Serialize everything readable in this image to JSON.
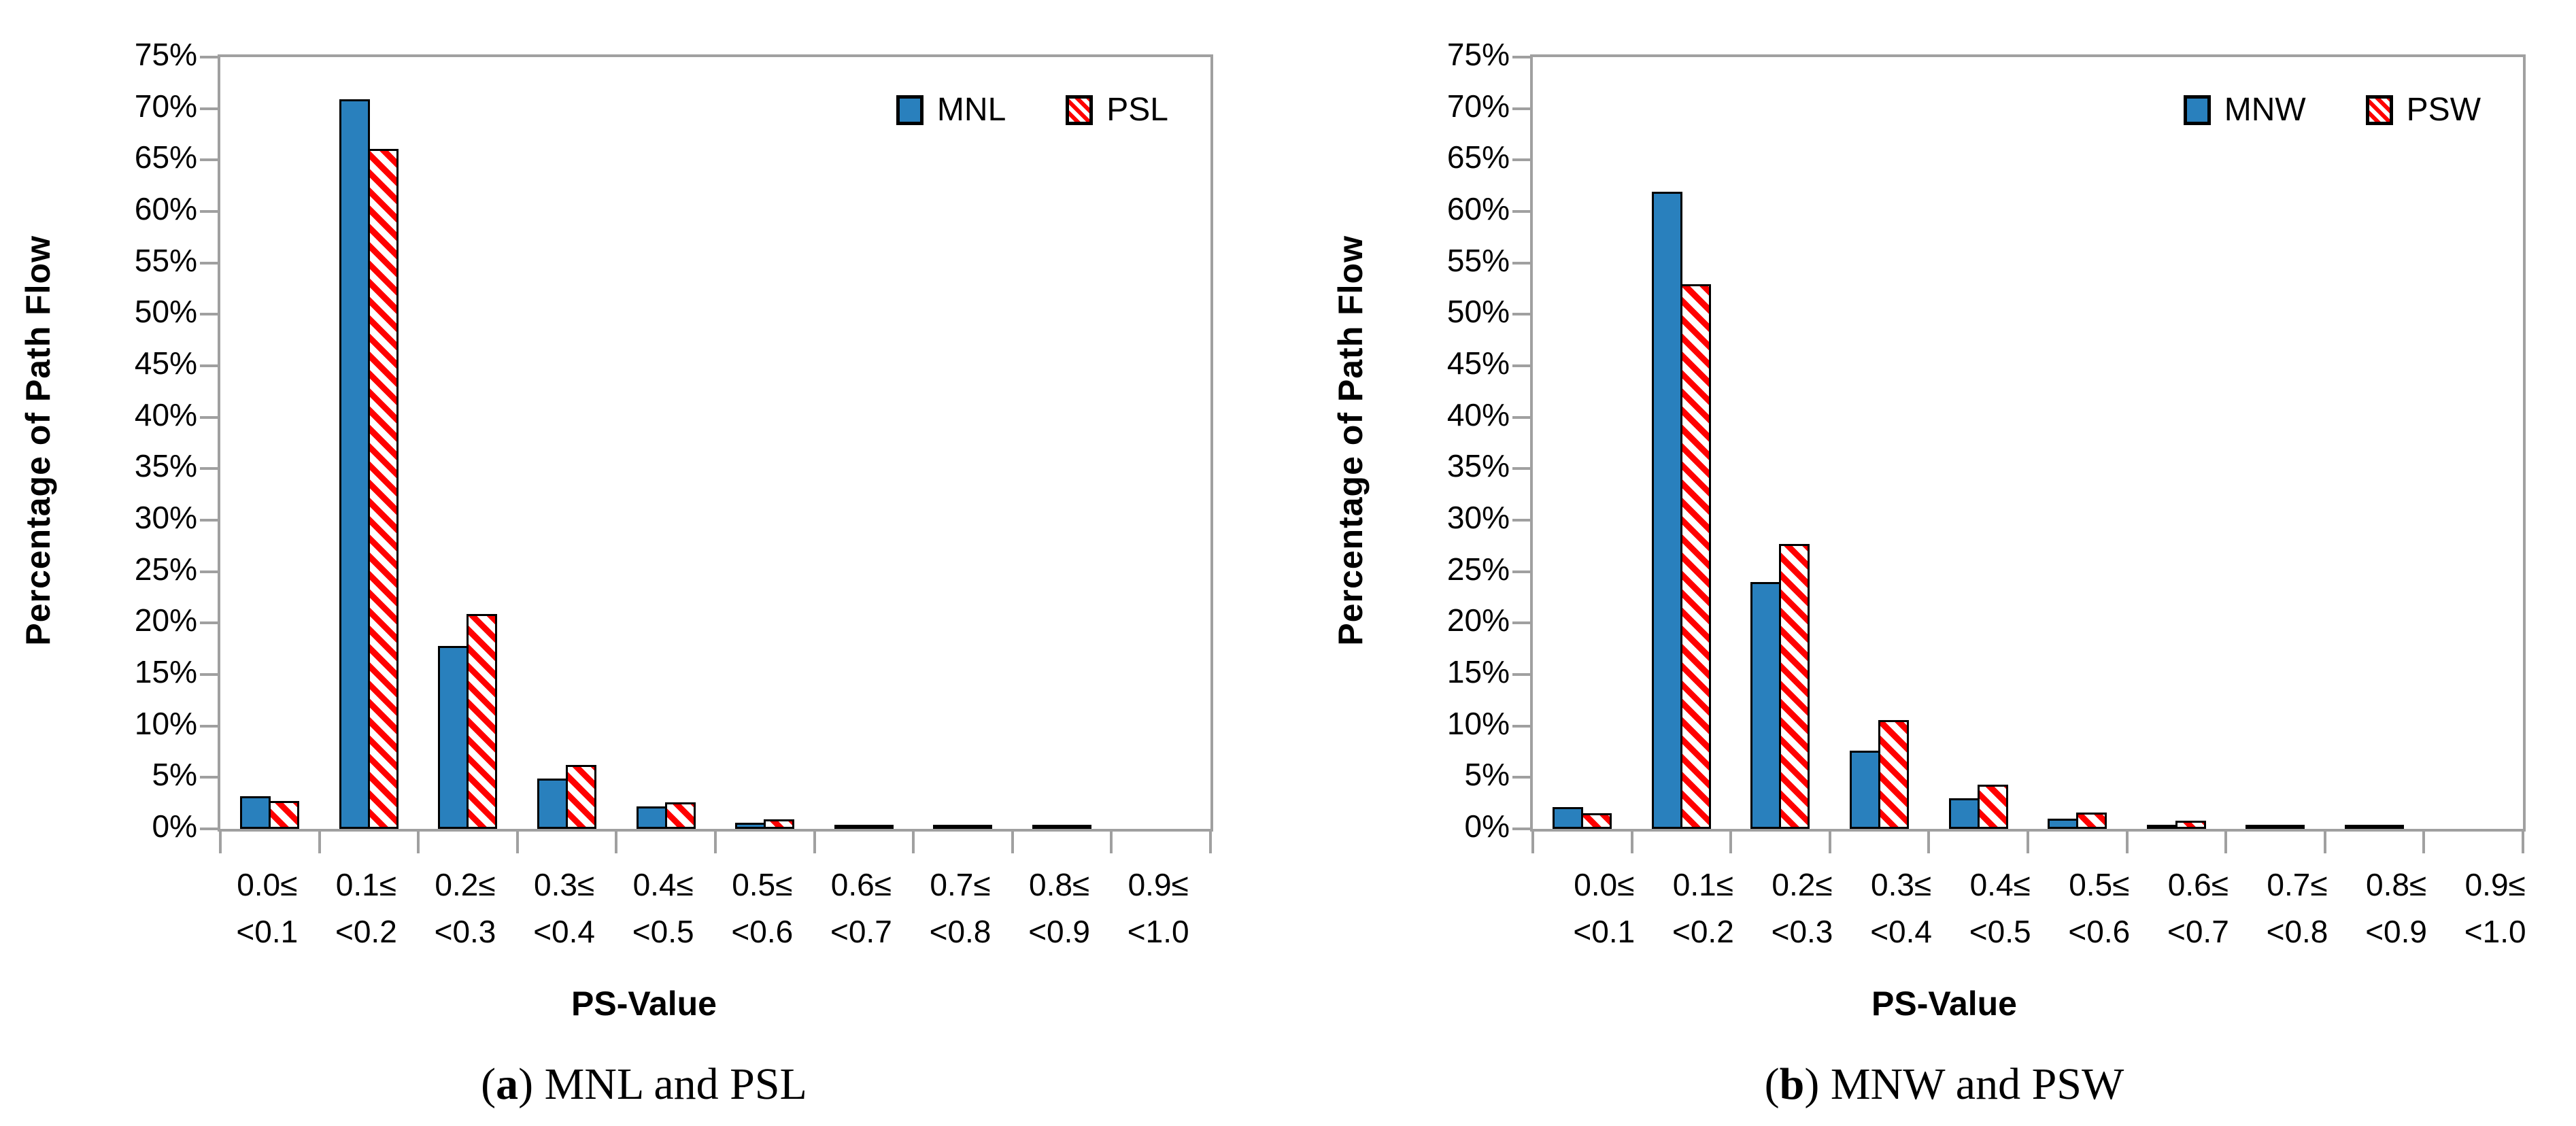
{
  "colors": {
    "bar_blue": "#2980BD",
    "hatch_red": "#FF0000",
    "axis_gray": "#A0A0A0",
    "text": "#000000",
    "background": "#FFFFFF"
  },
  "chart_data": [
    {
      "type": "bar",
      "panel": "a",
      "caption": {
        "prefix": "(",
        "letter": "a",
        "suffix": ") MNL and PSL"
      },
      "xlabel": "PS-Value",
      "ylabel": "Percentage of Path Flow",
      "ylim": [
        0,
        75
      ],
      "ytick_step": 5,
      "ytick_labels": [
        "75%",
        "70%",
        "65%",
        "60%",
        "55%",
        "50%",
        "45%",
        "40%",
        "35%",
        "30%",
        "25%",
        "20%",
        "15%",
        "10%",
        "5%",
        "0%"
      ],
      "grid": "off",
      "legend_position": "top-right-inside",
      "categories_line1": [
        "0.0≤",
        "0.1≤",
        "0.2≤",
        "0.3≤",
        "0.4≤",
        "0.5≤",
        "0.6≤",
        "0.7≤",
        "0.8≤",
        "0.9≤"
      ],
      "categories_line2": [
        "<0.1",
        "<0.2",
        "<0.3",
        "<0.4",
        "<0.5",
        "<0.6",
        "<0.7",
        "<0.8",
        "<0.9",
        "<1.0"
      ],
      "series": [
        {
          "name": "MNL",
          "style": "solid-blue",
          "values": [
            3.2,
            70.9,
            17.8,
            4.9,
            2.2,
            0.6,
            0.3,
            0.1,
            0.15,
            0
          ]
        },
        {
          "name": "PSL",
          "style": "hatched-red",
          "values": [
            2.7,
            66.1,
            20.9,
            6.2,
            2.6,
            0.9,
            0.4,
            0.15,
            0.2,
            0
          ]
        }
      ]
    },
    {
      "type": "bar",
      "panel": "b",
      "caption": {
        "prefix": "(",
        "letter": "b",
        "suffix": ") MNW and PSW"
      },
      "xlabel": "PS-Value",
      "ylabel": "Percentage of Path Flow",
      "ylim": [
        0,
        75
      ],
      "ytick_step": 5,
      "ytick_labels": [
        "75%",
        "70%",
        "65%",
        "60%",
        "55%",
        "50%",
        "45%",
        "40%",
        "35%",
        "30%",
        "25%",
        "20%",
        "15%",
        "10%",
        "5%",
        "0%"
      ],
      "grid": "off",
      "legend_position": "top-right-inside",
      "categories_line1": [
        "0.0≤",
        "0.1≤",
        "0.2≤",
        "0.3≤",
        "0.4≤",
        "0.5≤",
        "0.6≤",
        "0.7≤",
        "0.8≤",
        "0.9≤"
      ],
      "categories_line2": [
        "<0.1",
        "<0.2",
        "<0.3",
        "<0.4",
        "<0.5",
        "<0.6",
        "<0.7",
        "<0.8",
        "<0.9",
        "<1.0"
      ],
      "series": [
        {
          "name": "MNW",
          "style": "solid-blue",
          "values": [
            2.1,
            61.9,
            24.0,
            7.6,
            3.0,
            1.0,
            0.4,
            0.2,
            0.1,
            0
          ]
        },
        {
          "name": "PSW",
          "style": "hatched-red",
          "values": [
            1.5,
            52.9,
            27.7,
            10.6,
            4.3,
            1.6,
            0.8,
            0.25,
            0.15,
            0
          ]
        }
      ]
    }
  ]
}
